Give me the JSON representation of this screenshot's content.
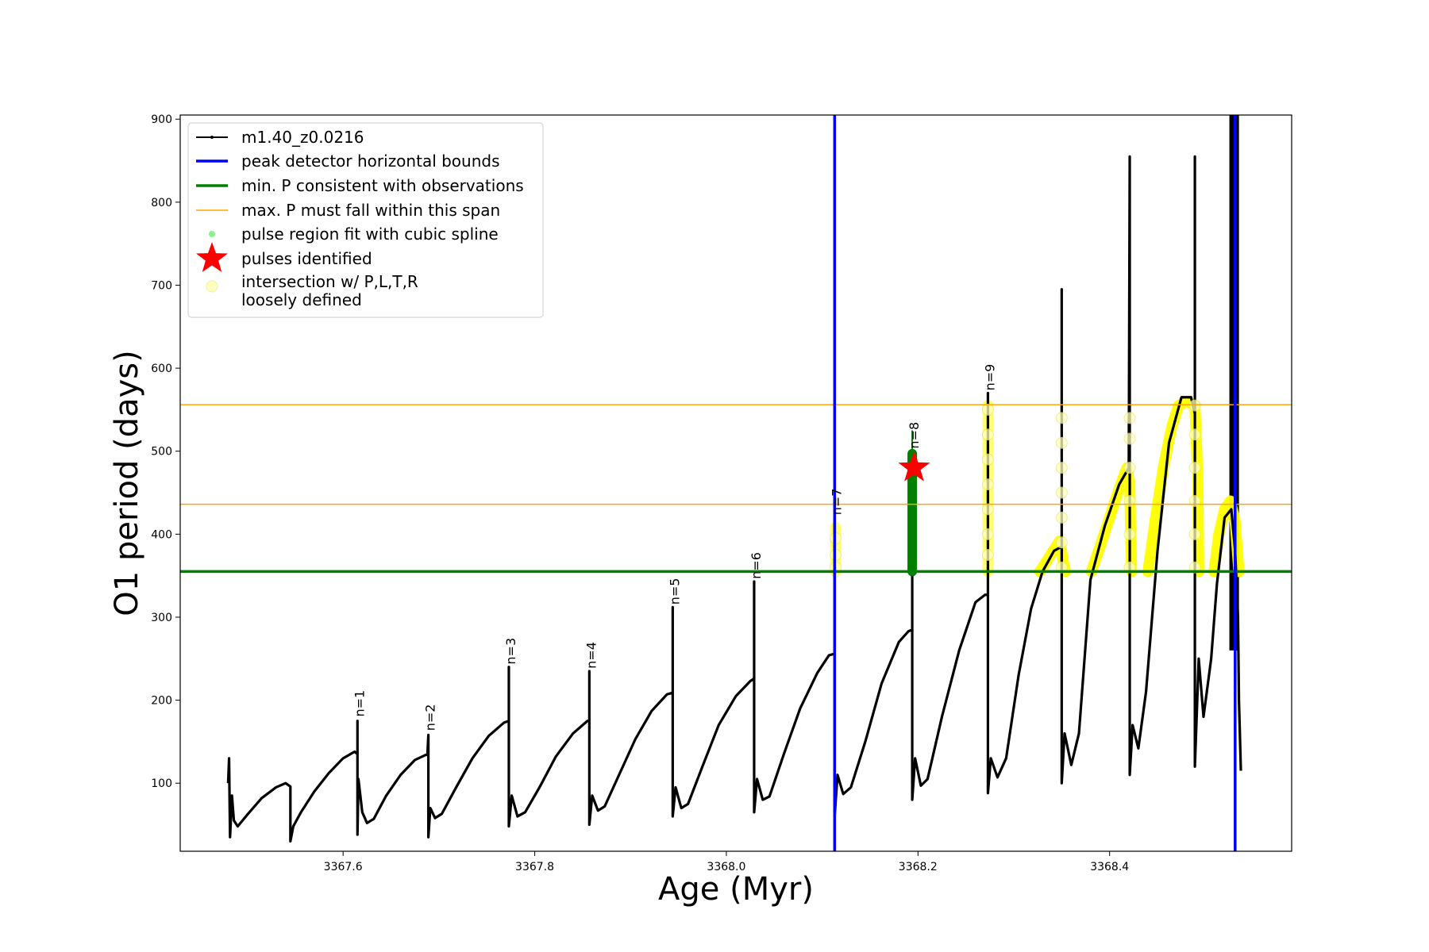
{
  "chart_data": {
    "type": "line",
    "xlabel": "Age (Myr)",
    "ylabel": "O1 period (days)",
    "xlim": [
      3367.43,
      3368.59
    ],
    "ylim": [
      18,
      905
    ],
    "xticks": [
      3367.6,
      3367.8,
      3368.0,
      3368.2,
      3368.4
    ],
    "xtick_labels": [
      "3367.6",
      "3367.8",
      "3368.0",
      "3368.2",
      "3368.4"
    ],
    "yticks": [
      100,
      200,
      300,
      400,
      500,
      600,
      700,
      800,
      900
    ],
    "ytick_labels": [
      "100",
      "200",
      "300",
      "400",
      "500",
      "600",
      "700",
      "800",
      "900"
    ],
    "grid": false,
    "legend_position": "top-left",
    "legend": [
      {
        "label": "m1.40_z0.0216",
        "kind": "line-marker",
        "color": "#000000"
      },
      {
        "label": "peak detector horizontal bounds",
        "kind": "line",
        "color": "#0000ff"
      },
      {
        "label": "min. P consistent with observations",
        "kind": "line",
        "color": "#008000"
      },
      {
        "label": "max. P must fall within this span",
        "kind": "thin-line",
        "color": "#ffa500"
      },
      {
        "label": "pulse region fit with cubic spline",
        "kind": "dot",
        "color": "#90ee90"
      },
      {
        "label": "pulses identified",
        "kind": "star",
        "color": "#ff0000"
      },
      {
        "label": "intersection w/ P,L,T,R\nloosely defined",
        "kind": "circle",
        "color": "#ffffc0"
      }
    ],
    "series": [
      {
        "name": "m1.40_z0.0216",
        "color": "#000000",
        "points": [
          [
            3367.48,
            100
          ],
          [
            3367.481,
            130
          ],
          [
            3367.482,
            35
          ],
          [
            3367.484,
            85
          ],
          [
            3367.486,
            55
          ],
          [
            3367.49,
            48
          ],
          [
            3367.5,
            62
          ],
          [
            3367.515,
            82
          ],
          [
            3367.53,
            95
          ],
          [
            3367.54,
            100
          ],
          [
            3367.545,
            96
          ],
          [
            3367.545,
            30
          ],
          [
            3367.548,
            48
          ],
          [
            3367.556,
            65
          ],
          [
            3367.57,
            90
          ],
          [
            3367.585,
            112
          ],
          [
            3367.6,
            130
          ],
          [
            3367.612,
            138
          ],
          [
            3367.615,
            135
          ],
          [
            3367.615,
            175
          ],
          [
            3367.615,
            38
          ],
          [
            3367.616,
            105
          ],
          [
            3367.62,
            65
          ],
          [
            3367.625,
            52
          ],
          [
            3367.632,
            57
          ],
          [
            3367.645,
            85
          ],
          [
            3367.66,
            110
          ],
          [
            3367.675,
            128
          ],
          [
            3367.688,
            135
          ],
          [
            3367.689,
            158
          ],
          [
            3367.689,
            35
          ],
          [
            3367.691,
            70
          ],
          [
            3367.696,
            58
          ],
          [
            3367.703,
            63
          ],
          [
            3367.718,
            95
          ],
          [
            3367.735,
            130
          ],
          [
            3367.752,
            157
          ],
          [
            3367.768,
            173
          ],
          [
            3367.773,
            175
          ],
          [
            3367.773,
            240
          ],
          [
            3367.773,
            48
          ],
          [
            3367.776,
            85
          ],
          [
            3367.782,
            60
          ],
          [
            3367.79,
            65
          ],
          [
            3367.805,
            95
          ],
          [
            3367.822,
            132
          ],
          [
            3367.84,
            160
          ],
          [
            3367.855,
            175
          ],
          [
            3367.857,
            176
          ],
          [
            3367.857,
            235
          ],
          [
            3367.857,
            50
          ],
          [
            3367.86,
            85
          ],
          [
            3367.866,
            67
          ],
          [
            3367.873,
            72
          ],
          [
            3367.888,
            110
          ],
          [
            3367.905,
            153
          ],
          [
            3367.922,
            187
          ],
          [
            3367.938,
            207
          ],
          [
            3367.944,
            209
          ],
          [
            3367.944,
            312
          ],
          [
            3367.944,
            60
          ],
          [
            3367.947,
            95
          ],
          [
            3367.953,
            70
          ],
          [
            3367.96,
            75
          ],
          [
            3367.975,
            120
          ],
          [
            3367.992,
            170
          ],
          [
            3368.01,
            205
          ],
          [
            3368.025,
            223
          ],
          [
            3368.029,
            226
          ],
          [
            3368.029,
            343
          ],
          [
            3368.029,
            65
          ],
          [
            3368.032,
            105
          ],
          [
            3368.038,
            80
          ],
          [
            3368.045,
            84
          ],
          [
            3368.06,
            135
          ],
          [
            3368.077,
            190
          ],
          [
            3368.095,
            233
          ],
          [
            3368.107,
            254
          ],
          [
            3368.113,
            256
          ],
          [
            3368.113,
            420
          ],
          [
            3368.113,
            60
          ],
          [
            3368.116,
            110
          ],
          [
            3368.122,
            87
          ],
          [
            3368.13,
            95
          ],
          [
            3368.145,
            150
          ],
          [
            3368.162,
            220
          ],
          [
            3368.18,
            270
          ],
          [
            3368.19,
            283
          ],
          [
            3368.194,
            285
          ],
          [
            3368.194,
            500
          ],
          [
            3368.194,
            80
          ],
          [
            3368.197,
            130
          ],
          [
            3368.203,
            97
          ],
          [
            3368.21,
            105
          ],
          [
            3368.225,
            180
          ],
          [
            3368.243,
            260
          ],
          [
            3368.26,
            318
          ],
          [
            3368.27,
            327
          ],
          [
            3368.273,
            327
          ],
          [
            3368.273,
            570
          ],
          [
            3368.273,
            88
          ],
          [
            3368.276,
            130
          ],
          [
            3368.283,
            107
          ],
          [
            3368.292,
            130
          ],
          [
            3368.305,
            230
          ],
          [
            3368.318,
            310
          ],
          [
            3368.33,
            355
          ],
          [
            3368.342,
            380
          ],
          [
            3368.35,
            385
          ],
          [
            3368.35,
            695
          ],
          [
            3368.35,
            100
          ],
          [
            3368.353,
            160
          ],
          [
            3368.36,
            122
          ],
          [
            3368.368,
            160
          ],
          [
            3368.38,
            345
          ],
          [
            3368.395,
            410
          ],
          [
            3368.41,
            460
          ],
          [
            3368.42,
            480
          ],
          [
            3368.421,
            855
          ],
          [
            3368.421,
            110
          ],
          [
            3368.424,
            170
          ],
          [
            3368.43,
            142
          ],
          [
            3368.438,
            210
          ],
          [
            3368.45,
            380
          ],
          [
            3368.462,
            510
          ],
          [
            3368.475,
            565
          ],
          [
            3368.485,
            565
          ],
          [
            3368.489,
            545
          ],
          [
            3368.489,
            855
          ],
          [
            3368.489,
            120
          ],
          [
            3368.493,
            250
          ],
          [
            3368.498,
            180
          ],
          [
            3368.506,
            250
          ],
          [
            3368.512,
            340
          ],
          [
            3368.52,
            420
          ],
          [
            3368.527,
            430
          ],
          [
            3368.531,
            380
          ],
          [
            3368.534,
            300
          ],
          [
            3368.535,
            200
          ],
          [
            3368.537,
            115
          ]
        ]
      },
      {
        "name": "spline-vertical-segments",
        "color": "#ffff00",
        "segments": [
          [
            [
              3368.114,
              355
            ],
            [
              3368.114,
              408
            ]
          ],
          [
            [
              3368.273,
              355
            ],
            [
              3368.273,
              555
            ]
          ]
        ]
      },
      {
        "name": "spline-arcs",
        "color": "#ffff00",
        "points_groups": [
          [
            [
              3368.327,
              355
            ],
            [
              3368.333,
              365
            ],
            [
              3368.34,
              378
            ],
            [
              3368.348,
              392
            ],
            [
              3368.352,
              365
            ],
            [
              3368.354,
              355
            ]
          ],
          [
            [
              3368.381,
              355
            ],
            [
              3368.39,
              385
            ],
            [
              3368.4,
              420
            ],
            [
              3368.41,
              455
            ],
            [
              3368.418,
              480
            ],
            [
              3368.421,
              460
            ],
            [
              3368.422,
              400
            ],
            [
              3368.423,
              355
            ]
          ],
          [
            [
              3368.44,
              355
            ],
            [
              3368.448,
              420
            ],
            [
              3368.456,
              480
            ],
            [
              3368.465,
              530
            ],
            [
              3368.472,
              555
            ],
            [
              3368.48,
              560
            ],
            [
              3368.489,
              555
            ],
            [
              3368.492,
              470
            ],
            [
              3368.493,
              355
            ]
          ],
          [
            [
              3368.509,
              355
            ],
            [
              3368.514,
              400
            ],
            [
              3368.52,
              430
            ],
            [
              3368.526,
              440
            ],
            [
              3368.531,
              415
            ],
            [
              3368.535,
              355
            ]
          ]
        ]
      },
      {
        "name": "intersection-circles",
        "color": "#ffffc0",
        "points": [
          [
            3368.114,
            360
          ],
          [
            3368.114,
            375
          ],
          [
            3368.114,
            395
          ],
          [
            3368.273,
            375
          ],
          [
            3368.273,
            400
          ],
          [
            3368.273,
            430
          ],
          [
            3368.273,
            460
          ],
          [
            3368.273,
            490
          ],
          [
            3368.273,
            520
          ],
          [
            3368.273,
            550
          ],
          [
            3368.35,
            360
          ],
          [
            3368.35,
            390
          ],
          [
            3368.35,
            420
          ],
          [
            3368.35,
            450
          ],
          [
            3368.35,
            480
          ],
          [
            3368.35,
            510
          ],
          [
            3368.35,
            540
          ],
          [
            3368.421,
            360
          ],
          [
            3368.421,
            400
          ],
          [
            3368.421,
            440
          ],
          [
            3368.421,
            480
          ],
          [
            3368.421,
            515
          ],
          [
            3368.421,
            540
          ],
          [
            3368.489,
            360
          ],
          [
            3368.489,
            400
          ],
          [
            3368.489,
            440
          ],
          [
            3368.489,
            480
          ],
          [
            3368.489,
            520
          ],
          [
            3368.489,
            555
          ]
        ]
      },
      {
        "name": "pulse-region-spline-fit",
        "color": "#008000",
        "x": 3368.194,
        "y_range": [
          355,
          497
        ],
        "whisker_top": 525
      }
    ],
    "hlines": [
      {
        "y": 355,
        "color": "#008000",
        "width": 3.5
      },
      {
        "y": 436,
        "color": "#ffa500",
        "width": 1.5
      },
      {
        "y": 556,
        "color": "#ffa500",
        "width": 1.5
      }
    ],
    "vlines": [
      {
        "x": 3368.113,
        "color": "#0000ff",
        "width": 3.5
      },
      {
        "x": 3368.531,
        "color": "#0000ff",
        "width": 3.5
      }
    ],
    "black_band": {
      "x": [
        3368.525,
        3368.535
      ],
      "y": [
        260,
        905
      ]
    },
    "pulses_identified": [
      {
        "x": 3368.196,
        "y": 480
      }
    ],
    "annotations": [
      {
        "text": "n=1",
        "x": 3367.617,
        "y": 180
      },
      {
        "text": "n=2",
        "x": 3367.691,
        "y": 163
      },
      {
        "text": "n=3",
        "x": 3367.775,
        "y": 243
      },
      {
        "text": "n=4",
        "x": 3367.859,
        "y": 238
      },
      {
        "text": "n=5",
        "x": 3367.946,
        "y": 315
      },
      {
        "text": "n=6",
        "x": 3368.031,
        "y": 346
      },
      {
        "text": "n=7",
        "x": 3368.115,
        "y": 423
      },
      {
        "text": "n=8",
        "x": 3368.196,
        "y": 503
      },
      {
        "text": "n=9",
        "x": 3368.275,
        "y": 573
      }
    ]
  }
}
